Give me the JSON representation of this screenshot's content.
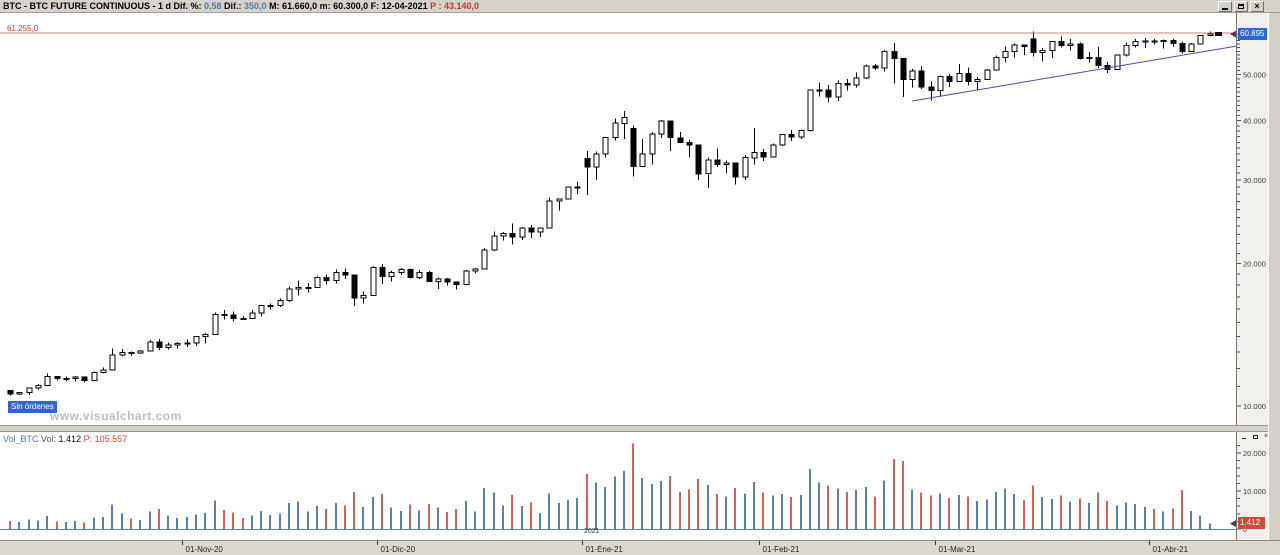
{
  "window": {
    "title_parts": [
      {
        "text": "BTC - BTC FUTURE CONTINUOUS -  1 d  ",
        "color": "#000000"
      },
      {
        "text": "Dif. %: ",
        "color": "#000000"
      },
      {
        "text": "0,58",
        "color": "#4a7ab5"
      },
      {
        "text": "  Dif.: ",
        "color": "#000000"
      },
      {
        "text": "350,0",
        "color": "#4a7ab5"
      },
      {
        "text": "  M: 61.660,0  m: 60.300,0  F: 12-04-2021  ",
        "color": "#000000"
      },
      {
        "text": "P : 43.140,0",
        "color": "#c0392b"
      }
    ]
  },
  "main_pane": {
    "ref_line": {
      "label": "61.255,0",
      "price": 61.255
    },
    "price_badge": {
      "label": "60.895",
      "value": 60.895,
      "bg": "#2f66c8"
    },
    "no_orders_badge": {
      "label": "Sin órdenes",
      "bg": "#3366cc"
    },
    "watermark": "www.visualchart.com"
  },
  "volume_pane": {
    "header_parts": [
      {
        "text": "Vol_BTC ",
        "color": "#4a7ab5"
      },
      {
        "text": " Vol: ",
        "color": "#555555"
      },
      {
        "text": "1.412",
        "color": "#111111"
      },
      {
        "text": "  P: 105.557",
        "color": "#cc4433"
      }
    ],
    "badge": {
      "label": "1.412",
      "value": 1412,
      "bg": "#d7473a"
    },
    "zero_label": "0",
    "year_label": "2021"
  },
  "chart_data": {
    "type": "candlestick",
    "title": "BTC FUTURE CONTINUOUS - 1 d",
    "price_scale": "logarithmic",
    "price_unit_thousands": true,
    "price_axis_labels": [
      {
        "text": "50.000",
        "value": 50
      },
      {
        "text": "40.000",
        "value": 40
      },
      {
        "text": "30.000",
        "value": 30
      },
      {
        "text": "20.000",
        "value": 20
      },
      {
        "text": "10.000",
        "value": 10
      }
    ],
    "volume_axis_labels": [
      {
        "text": "20.000",
        "value": 20000
      },
      {
        "text": "10.000",
        "value": 10000
      }
    ],
    "ref_line_price": 61.255,
    "last_price": 60.895,
    "last_volume": 1412,
    "trendline": {
      "x1_index": 97,
      "price1": 44.0,
      "x2_index": 132,
      "price2": 57.5
    },
    "x_ticks": [
      {
        "label": "01-Nov-20",
        "index": 18.5
      },
      {
        "label": "01-Dic-20",
        "index": 39.5
      },
      {
        "label": "01-Ene-21",
        "index": 61.5
      },
      {
        "label": "01-Feb-21",
        "index": 80.5
      },
      {
        "label": "01-Mar-21",
        "index": 99.5
      },
      {
        "label": "01-Abr-21",
        "index": 122.5
      }
    ],
    "colors": {
      "up_body": "#ffffff",
      "down_body": "#000000",
      "outline": "#000000",
      "vol_up": "#5b7fa6",
      "vol_down": "#d0645c",
      "ref_line": "#d08080",
      "trendline": "#4a4a9e"
    },
    "candles_format": [
      "date",
      "open",
      "high",
      "low",
      "close",
      "volume"
    ],
    "candles": [
      [
        "2020-10-06",
        10.79,
        10.82,
        10.52,
        10.6,
        2100
      ],
      [
        "2020-10-07",
        10.6,
        10.7,
        10.54,
        10.67,
        1800
      ],
      [
        "2020-10-08",
        10.67,
        10.95,
        10.55,
        10.92,
        2500
      ],
      [
        "2020-10-09",
        10.92,
        11.12,
        10.83,
        11.06,
        2200
      ],
      [
        "2020-10-12",
        11.06,
        11.72,
        11.02,
        11.53,
        3400
      ],
      [
        "2020-10-13",
        11.53,
        11.58,
        11.33,
        11.42,
        2000
      ],
      [
        "2020-10-14",
        11.42,
        11.55,
        11.29,
        11.42,
        1900
      ],
      [
        "2020-10-15",
        11.42,
        11.58,
        11.26,
        11.5,
        2100
      ],
      [
        "2020-10-16",
        11.5,
        11.52,
        11.21,
        11.32,
        1700
      ],
      [
        "2020-10-19",
        11.32,
        11.83,
        11.3,
        11.76,
        3000
      ],
      [
        "2020-10-20",
        11.76,
        12.05,
        11.7,
        11.92,
        3200
      ],
      [
        "2020-10-21",
        11.92,
        13.22,
        11.91,
        12.8,
        6500
      ],
      [
        "2020-10-22",
        12.8,
        13.19,
        12.72,
        12.97,
        4100
      ],
      [
        "2020-10-23",
        12.97,
        13.02,
        12.75,
        12.93,
        2800
      ],
      [
        "2020-10-26",
        12.93,
        13.12,
        12.88,
        13.07,
        2400
      ],
      [
        "2020-10-27",
        13.07,
        13.78,
        13.05,
        13.65,
        4600
      ],
      [
        "2020-10-28",
        13.65,
        13.86,
        13.13,
        13.27,
        5200
      ],
      [
        "2020-10-29",
        13.27,
        13.62,
        13.15,
        13.46,
        3600
      ],
      [
        "2020-10-30",
        13.46,
        13.66,
        13.22,
        13.56,
        2900
      ],
      [
        "2020-11-02",
        13.56,
        13.82,
        13.33,
        13.57,
        3100
      ],
      [
        "2020-11-03",
        13.57,
        14.06,
        13.38,
        14.0,
        3800
      ],
      [
        "2020-11-04",
        14.0,
        14.26,
        13.56,
        14.14,
        4200
      ],
      [
        "2020-11-05",
        14.14,
        15.76,
        14.11,
        15.58,
        7500
      ],
      [
        "2020-11-06",
        15.58,
        15.96,
        15.21,
        15.56,
        5000
      ],
      [
        "2020-11-09",
        15.56,
        15.82,
        15.07,
        15.3,
        4400
      ],
      [
        "2020-11-10",
        15.3,
        15.48,
        15.22,
        15.29,
        2900
      ],
      [
        "2020-11-11",
        15.29,
        15.96,
        15.28,
        15.7,
        3500
      ],
      [
        "2020-11-12",
        15.7,
        16.34,
        15.45,
        16.28,
        4800
      ],
      [
        "2020-11-13",
        16.28,
        16.46,
        15.97,
        16.3,
        3700
      ],
      [
        "2020-11-16",
        16.3,
        16.86,
        16.17,
        16.7,
        4100
      ],
      [
        "2020-11-17",
        16.7,
        17.86,
        16.56,
        17.65,
        6800
      ],
      [
        "2020-11-18",
        17.65,
        18.42,
        17.1,
        17.78,
        7200
      ],
      [
        "2020-11-19",
        17.78,
        18.16,
        17.35,
        17.8,
        4600
      ],
      [
        "2020-11-20",
        17.8,
        18.82,
        17.78,
        18.65,
        6100
      ],
      [
        "2020-11-23",
        18.65,
        18.96,
        18.05,
        18.4,
        5300
      ],
      [
        "2020-11-24",
        18.4,
        19.42,
        18.12,
        19.15,
        6900
      ],
      [
        "2020-11-25",
        19.15,
        19.51,
        18.55,
        18.9,
        6200
      ],
      [
        "2020-11-26",
        18.9,
        18.92,
        16.25,
        16.9,
        9800
      ],
      [
        "2020-11-27",
        16.9,
        17.46,
        16.45,
        17.1,
        5800
      ],
      [
        "2020-11-30",
        17.1,
        19.76,
        17.05,
        19.6,
        8400
      ],
      [
        "2020-12-01",
        19.6,
        19.92,
        18.1,
        18.75,
        9200
      ],
      [
        "2020-12-02",
        18.75,
        19.32,
        18.3,
        19.15,
        5600
      ],
      [
        "2020-12-03",
        19.15,
        19.56,
        18.9,
        19.4,
        4800
      ],
      [
        "2020-12-04",
        19.4,
        19.52,
        18.6,
        18.65,
        6400
      ],
      [
        "2020-12-07",
        18.65,
        19.36,
        18.55,
        19.15,
        4900
      ],
      [
        "2020-12-08",
        19.15,
        19.26,
        18.25,
        18.3,
        6600
      ],
      [
        "2020-12-09",
        18.3,
        18.66,
        17.65,
        18.55,
        5700
      ],
      [
        "2020-12-10",
        18.55,
        18.62,
        17.95,
        18.25,
        4500
      ],
      [
        "2020-12-11",
        18.25,
        18.32,
        17.6,
        18.05,
        5200
      ],
      [
        "2020-12-14",
        18.05,
        19.36,
        18.0,
        19.25,
        7400
      ],
      [
        "2020-12-15",
        19.25,
        19.56,
        19.05,
        19.45,
        4600
      ],
      [
        "2020-12-16",
        19.45,
        21.52,
        19.4,
        21.35,
        10800
      ],
      [
        "2020-12-17",
        21.35,
        23.32,
        21.25,
        22.85,
        9600
      ],
      [
        "2020-12-18",
        22.85,
        23.26,
        22.35,
        23.1,
        6200
      ],
      [
        "2020-12-21",
        23.1,
        24.26,
        21.9,
        22.7,
        8900
      ],
      [
        "2020-12-22",
        22.7,
        23.86,
        22.4,
        23.75,
        6100
      ],
      [
        "2020-12-23",
        23.75,
        24.12,
        22.6,
        23.3,
        7000
      ],
      [
        "2020-12-24",
        23.3,
        23.82,
        22.75,
        23.75,
        4200
      ],
      [
        "2020-12-28",
        23.75,
        27.52,
        23.7,
        27.1,
        9400
      ],
      [
        "2020-12-29",
        27.1,
        27.42,
        25.85,
        27.35,
        6800
      ],
      [
        "2020-12-30",
        27.35,
        29.02,
        27.3,
        28.95,
        7600
      ],
      [
        "2020-12-31",
        28.95,
        29.66,
        28.0,
        29.0,
        8200
      ],
      [
        "2021-01-04",
        33.3,
        34.52,
        27.9,
        31.9,
        14500
      ],
      [
        "2021-01-05",
        31.9,
        34.46,
        29.95,
        34.0,
        12200
      ],
      [
        "2021-01-06",
        34.0,
        36.96,
        33.45,
        36.85,
        11000
      ],
      [
        "2021-01-07",
        36.85,
        40.42,
        36.3,
        39.5,
        13800
      ],
      [
        "2021-01-08",
        39.5,
        41.96,
        36.6,
        40.6,
        15200
      ],
      [
        "2021-01-11",
        38.5,
        39.02,
        30.5,
        32.0,
        22500
      ],
      [
        "2021-01-12",
        32.0,
        36.62,
        32.0,
        34.0,
        13400
      ],
      [
        "2021-01-13",
        34.0,
        37.82,
        32.3,
        37.5,
        11800
      ],
      [
        "2021-01-14",
        37.5,
        40.12,
        36.8,
        39.9,
        12600
      ],
      [
        "2021-01-15",
        39.9,
        40.02,
        34.5,
        36.8,
        14000
      ],
      [
        "2021-01-19",
        36.8,
        37.86,
        35.9,
        36.0,
        9800
      ],
      [
        "2021-01-20",
        36.0,
        36.42,
        33.4,
        35.5,
        10400
      ],
      [
        "2021-01-21",
        35.5,
        35.62,
        30.0,
        30.9,
        13200
      ],
      [
        "2021-01-22",
        30.9,
        33.46,
        28.85,
        33.0,
        11600
      ],
      [
        "2021-01-25",
        33.0,
        34.92,
        31.95,
        32.3,
        9200
      ],
      [
        "2021-01-26",
        32.3,
        32.92,
        30.95,
        32.55,
        8600
      ],
      [
        "2021-01-27",
        32.55,
        32.62,
        29.3,
        30.4,
        10800
      ],
      [
        "2021-01-28",
        30.4,
        33.82,
        30.0,
        33.4,
        9400
      ],
      [
        "2021-01-29",
        33.4,
        38.62,
        32.3,
        34.3,
        12400
      ],
      [
        "2021-02-01",
        34.3,
        34.86,
        32.9,
        33.5,
        9600
      ],
      [
        "2021-02-02",
        33.5,
        35.76,
        33.4,
        35.5,
        8800
      ],
      [
        "2021-02-03",
        35.5,
        37.52,
        35.35,
        37.35,
        9200
      ],
      [
        "2021-02-04",
        37.35,
        38.26,
        36.25,
        36.95,
        8400
      ],
      [
        "2021-02-05",
        36.95,
        38.32,
        36.6,
        38.1,
        9000
      ],
      [
        "2021-02-08",
        38.1,
        46.52,
        37.95,
        46.4,
        15800
      ],
      [
        "2021-02-09",
        46.4,
        48.12,
        45.0,
        46.45,
        12200
      ],
      [
        "2021-02-10",
        46.45,
        47.52,
        43.7,
        44.85,
        11400
      ],
      [
        "2021-02-11",
        44.85,
        48.66,
        44.0,
        47.95,
        10600
      ],
      [
        "2021-02-12",
        47.95,
        48.92,
        46.25,
        47.6,
        9800
      ],
      [
        "2021-02-16",
        47.6,
        50.52,
        47.0,
        49.2,
        10200
      ],
      [
        "2021-02-17",
        49.2,
        52.52,
        49.0,
        52.2,
        11000
      ],
      [
        "2021-02-18",
        52.2,
        52.62,
        51.2,
        51.6,
        8600
      ],
      [
        "2021-02-19",
        51.6,
        56.32,
        50.8,
        55.9,
        12800
      ],
      [
        "2021-02-22",
        56.0,
        58.36,
        47.9,
        54.1,
        18400
      ],
      [
        "2021-02-23",
        54.1,
        54.22,
        44.9,
        48.8,
        17900
      ],
      [
        "2021-02-24",
        48.8,
        51.42,
        47.0,
        50.9,
        10400
      ],
      [
        "2021-02-25",
        50.9,
        52.12,
        46.65,
        47.1,
        9600
      ],
      [
        "2021-02-26",
        47.1,
        48.46,
        44.15,
        46.3,
        8800
      ],
      [
        "2021-03-01",
        46.3,
        49.82,
        45.05,
        49.55,
        9400
      ],
      [
        "2021-03-02",
        49.55,
        50.22,
        47.05,
        48.35,
        8200
      ],
      [
        "2021-03-03",
        48.35,
        52.62,
        48.2,
        50.3,
        9000
      ],
      [
        "2021-03-04",
        50.3,
        51.82,
        47.45,
        48.35,
        8600
      ],
      [
        "2021-03-05",
        48.35,
        49.46,
        46.3,
        48.9,
        7400
      ],
      [
        "2021-03-08",
        48.9,
        51.42,
        48.85,
        51.2,
        7800
      ],
      [
        "2021-03-09",
        51.2,
        54.92,
        51.0,
        54.4,
        9800
      ],
      [
        "2021-03-10",
        54.4,
        57.32,
        53.0,
        55.9,
        10600
      ],
      [
        "2021-03-11",
        55.9,
        58.12,
        54.3,
        57.8,
        9200
      ],
      [
        "2021-03-12",
        57.8,
        57.92,
        55.0,
        57.3,
        7600
      ],
      [
        "2021-03-15",
        59.5,
        61.7,
        54.6,
        55.7,
        11400
      ],
      [
        "2021-03-16",
        55.7,
        56.92,
        53.25,
        56.3,
        8400
      ],
      [
        "2021-03-17",
        56.3,
        58.96,
        54.2,
        58.7,
        7900
      ],
      [
        "2021-03-18",
        58.7,
        60.12,
        57.0,
        57.6,
        8800
      ],
      [
        "2021-03-19",
        57.6,
        59.46,
        56.3,
        58.1,
        7200
      ],
      [
        "2021-03-22",
        58.1,
        58.52,
        53.8,
        54.1,
        8000
      ],
      [
        "2021-03-23",
        54.1,
        55.82,
        53.0,
        54.4,
        6800
      ],
      [
        "2021-03-24",
        54.4,
        57.26,
        51.7,
        52.3,
        9600
      ],
      [
        "2021-03-25",
        52.3,
        53.12,
        50.4,
        51.3,
        7400
      ],
      [
        "2021-03-26",
        51.3,
        55.12,
        51.25,
        55.0,
        6200
      ],
      [
        "2021-03-29",
        55.0,
        58.42,
        54.6,
        57.65,
        7000
      ],
      [
        "2021-03-30",
        57.65,
        59.42,
        57.0,
        58.8,
        6600
      ],
      [
        "2021-03-31",
        58.8,
        59.82,
        56.9,
        58.9,
        5800
      ],
      [
        "2021-04-01",
        58.9,
        59.52,
        57.95,
        58.75,
        5200
      ],
      [
        "2021-04-05",
        58.75,
        59.26,
        56.75,
        59.1,
        4600
      ],
      [
        "2021-04-06",
        59.1,
        59.52,
        57.3,
        58.2,
        5400
      ],
      [
        "2021-04-07",
        58.2,
        58.72,
        55.4,
        56.0,
        10200
      ],
      [
        "2021-04-08",
        56.0,
        58.32,
        55.9,
        58.1,
        4800
      ],
      [
        "2021-04-09",
        58.1,
        60.6,
        58.0,
        60.545,
        3600
      ],
      [
        "2021-04-12",
        60.55,
        61.66,
        60.3,
        60.895,
        1412
      ]
    ]
  }
}
